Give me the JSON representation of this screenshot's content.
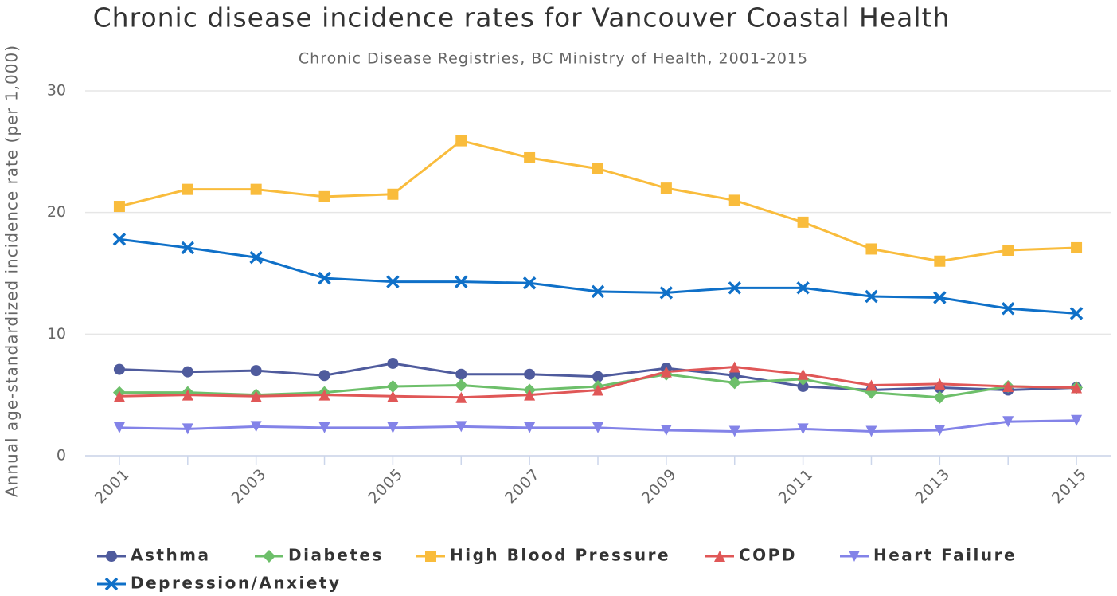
{
  "chart_data": {
    "type": "line",
    "title": "Chronic disease incidence rates for Vancouver Coastal Health",
    "subtitle": "Chronic Disease Registries, BC Ministry of Health, 2001-2015",
    "y_label": "Annual age-standardized incidence rate (per 1,000)",
    "x": [
      2001,
      2002,
      2003,
      2004,
      2005,
      2006,
      2007,
      2008,
      2009,
      2010,
      2011,
      2012,
      2013,
      2014,
      2015
    ],
    "xlim": [
      2000.5,
      2015.5
    ],
    "xticks": [
      2001,
      2003,
      2005,
      2007,
      2009,
      2011,
      2013,
      2015
    ],
    "ylim": [
      0,
      30
    ],
    "yticks": [
      0,
      10,
      20,
      30
    ],
    "grid": true,
    "legend": "bottom",
    "series": [
      {
        "name": "Asthma",
        "color": "#4f5b9d",
        "marker": "circle",
        "values": [
          7.1,
          6.9,
          7.0,
          6.6,
          7.6,
          6.7,
          6.7,
          6.5,
          7.2,
          6.6,
          5.7,
          5.4,
          5.6,
          5.4,
          5.6
        ]
      },
      {
        "name": "Diabetes",
        "color": "#6dbf6a",
        "marker": "diamond",
        "values": [
          5.2,
          5.2,
          5.0,
          5.2,
          5.7,
          5.8,
          5.4,
          5.7,
          6.7,
          6.0,
          6.3,
          5.2,
          4.8,
          5.7,
          5.6
        ]
      },
      {
        "name": "High Blood Pressure",
        "color": "#f9bc3c",
        "marker": "square",
        "values": [
          20.5,
          21.9,
          21.9,
          21.3,
          21.5,
          25.9,
          24.5,
          23.6,
          22.0,
          21.0,
          19.2,
          17.0,
          16.0,
          16.9,
          17.1
        ]
      },
      {
        "name": "COPD",
        "color": "#e05757",
        "marker": "triangle",
        "values": [
          4.9,
          5.0,
          4.9,
          5.0,
          4.9,
          4.8,
          5.0,
          5.4,
          6.9,
          7.3,
          6.7,
          5.8,
          5.9,
          5.7,
          5.6
        ]
      },
      {
        "name": "Heart Failure",
        "color": "#8383e8",
        "marker": "triangle-down",
        "values": [
          2.3,
          2.2,
          2.4,
          2.3,
          2.3,
          2.4,
          2.3,
          2.3,
          2.1,
          2.0,
          2.2,
          2.0,
          2.1,
          2.8,
          2.9
        ]
      },
      {
        "name": "Depression/Anxiety",
        "color": "#0f70c8",
        "marker": "cross",
        "values": [
          17.8,
          17.1,
          16.3,
          14.6,
          14.3,
          14.3,
          14.2,
          13.5,
          13.4,
          13.8,
          13.8,
          13.1,
          13.0,
          12.1,
          11.7
        ]
      }
    ]
  }
}
